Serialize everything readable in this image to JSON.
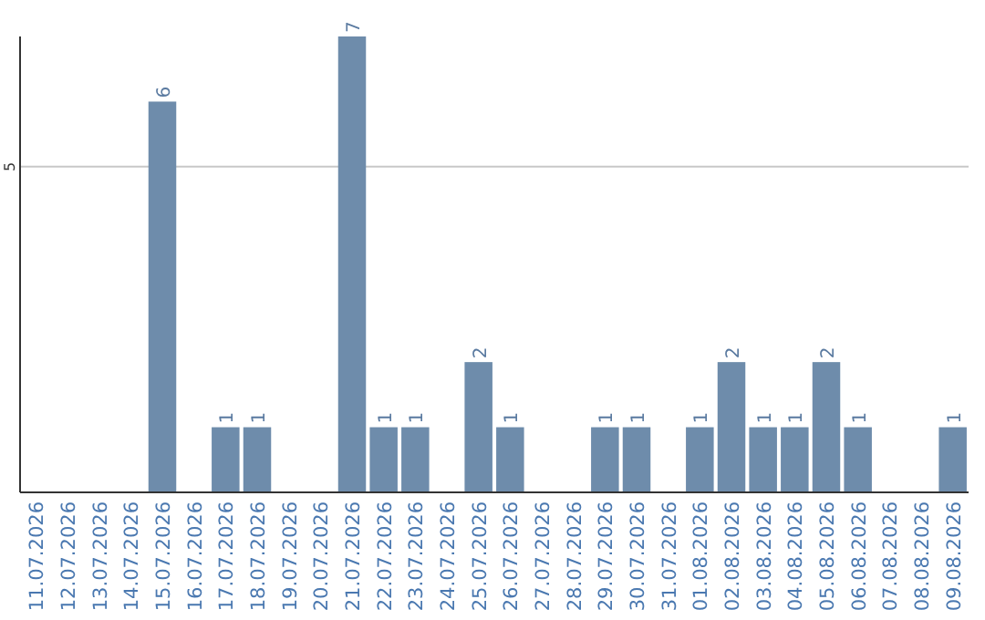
{
  "chart_data": {
    "type": "bar",
    "categories": [
      "11.07.2026",
      "12.07.2026",
      "13.07.2026",
      "14.07.2026",
      "15.07.2026",
      "16.07.2026",
      "17.07.2026",
      "18.07.2026",
      "19.07.2026",
      "20.07.2026",
      "21.07.2026",
      "22.07.2026",
      "23.07.2026",
      "24.07.2026",
      "25.07.2026",
      "26.07.2026",
      "27.07.2026",
      "28.07.2026",
      "29.07.2026",
      "30.07.2026",
      "31.07.2026",
      "01.08.2026",
      "02.08.2026",
      "03.08.2026",
      "04.08.2026",
      "05.08.2026",
      "06.08.2026",
      "07.08.2026",
      "08.08.2026",
      "09.08.2026"
    ],
    "values": [
      0,
      0,
      0,
      0,
      6,
      0,
      1,
      1,
      0,
      0,
      7,
      1,
      1,
      0,
      2,
      1,
      0,
      0,
      1,
      1,
      0,
      1,
      2,
      1,
      1,
      2,
      1,
      0,
      0,
      1
    ],
    "value_labels": [
      null,
      null,
      null,
      null,
      "6",
      null,
      "1",
      "1",
      null,
      null,
      "7",
      "1",
      "1",
      null,
      "2",
      "1",
      null,
      null,
      "1",
      "1",
      null,
      "1",
      "2",
      "1",
      "1",
      "2",
      "1",
      null,
      null,
      "1"
    ],
    "color": "#6e8cab",
    "ylim": [
      0,
      7
    ],
    "yticks": [
      5
    ],
    "grid": "y"
  }
}
